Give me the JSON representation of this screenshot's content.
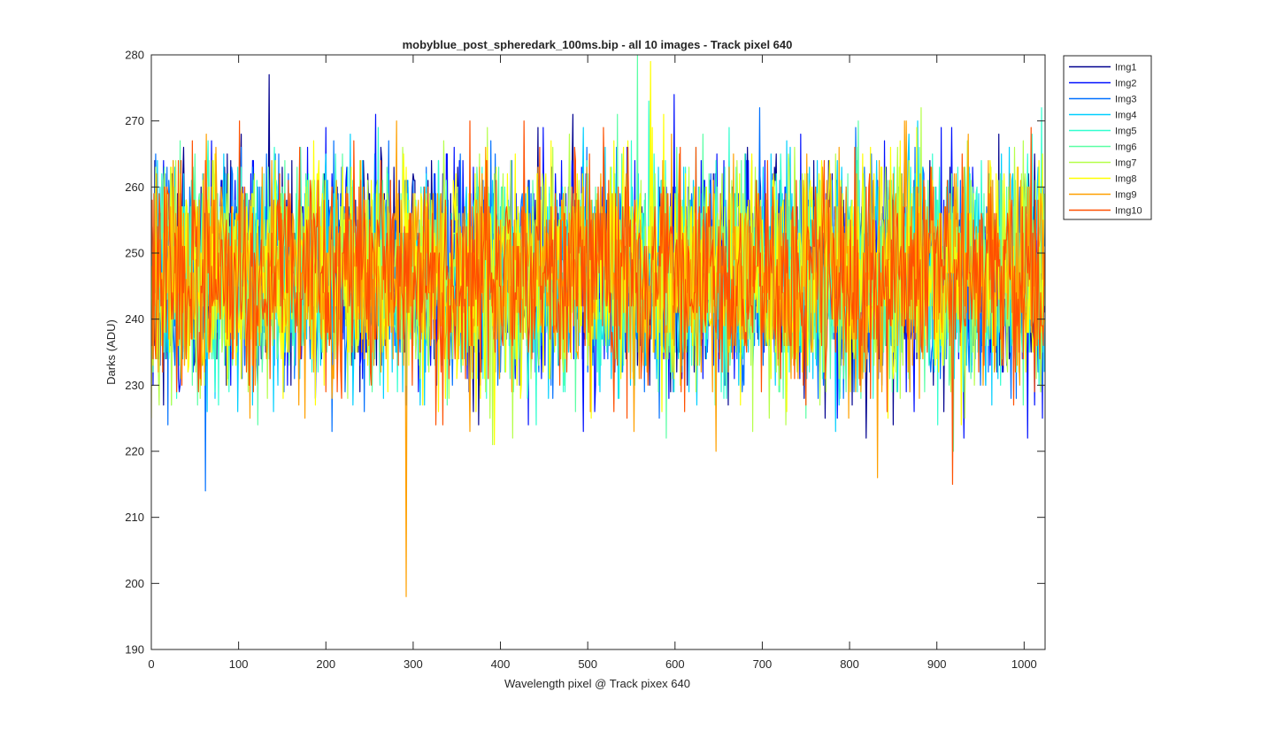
{
  "chart_data": {
    "type": "line",
    "title": "mobyblue_post_spheredark_100ms.bip - all 10 images  - Track pixel 640",
    "xlabel": "Wavelength pixel @ Track pixex 640",
    "ylabel": "Darks (ADU)",
    "xlim": [
      0,
      1024
    ],
    "ylim": [
      190,
      280
    ],
    "xticks": [
      0,
      100,
      200,
      300,
      400,
      500,
      600,
      700,
      800,
      900,
      1000
    ],
    "yticks": [
      190,
      200,
      210,
      220,
      230,
      240,
      250,
      260,
      270,
      280
    ],
    "grid": false,
    "legend_position": "outside-top-right",
    "n_points": 1024,
    "noise_model": {
      "mean": 247,
      "typical_range": [
        222,
        272
      ],
      "note": "Dense noisy dark-frame traces; per-pixel values are random noise around ~247 ADU"
    },
    "series": [
      {
        "name": "Img1",
        "color": "#00008f"
      },
      {
        "name": "Img2",
        "color": "#0010ff"
      },
      {
        "name": "Img3",
        "color": "#0070ff"
      },
      {
        "name": "Img4",
        "color": "#00cfff"
      },
      {
        "name": "Img5",
        "color": "#30ffcf"
      },
      {
        "name": "Img6",
        "color": "#5affa5"
      },
      {
        "name": "Img7",
        "color": "#b5ff4a"
      },
      {
        "name": "Img8",
        "color": "#ffff00"
      },
      {
        "name": "Img9",
        "color": "#ffa000"
      },
      {
        "name": "Img10",
        "color": "#ff5000"
      }
    ],
    "notable_points": [
      {
        "series": "Img1",
        "x": 135,
        "y": 277
      },
      {
        "series": "Img9",
        "x": 292,
        "y": 198
      },
      {
        "series": "Img6",
        "x": 557,
        "y": 280
      },
      {
        "series": "Img8",
        "x": 572,
        "y": 279
      },
      {
        "series": "Img3",
        "x": 62,
        "y": 214
      },
      {
        "series": "Img10",
        "x": 918,
        "y": 215
      }
    ]
  }
}
